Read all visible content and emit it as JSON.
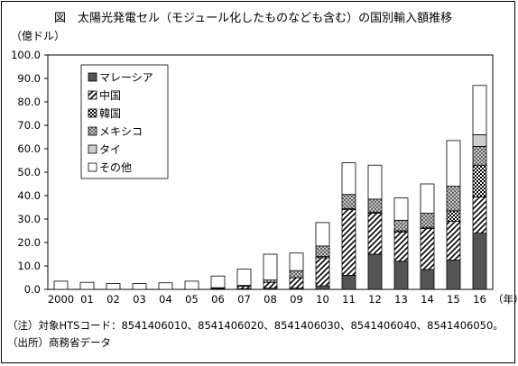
{
  "figure_title": "図　太陽光発電セル（モジュール化したものなども含む）の国別輸入額推移",
  "notes": {
    "note1": "（注）対象HTSコード：8541406010、8541406020、8541406030、8541406040、8541406050。",
    "note2": "（出所）商務省データ"
  },
  "chart_data": {
    "type": "bar",
    "stacked": true,
    "title": "図　太陽光発電セル（モジュール化したものなども含む）の国別輸入額推移",
    "ylabel": "（億ドル）",
    "xlabel": "（年）",
    "ylim": [
      0,
      100
    ],
    "yticks": [
      "0.0",
      "10.0",
      "20.0",
      "30.0",
      "40.0",
      "50.0",
      "60.0",
      "70.0",
      "80.0",
      "90.0",
      "100.0"
    ],
    "grid": false,
    "legend_position": "top-left",
    "categories": [
      "2000",
      "01",
      "02",
      "03",
      "04",
      "05",
      "06",
      "07",
      "08",
      "09",
      "10",
      "11",
      "12",
      "13",
      "14",
      "15",
      "16"
    ],
    "series": [
      {
        "name": "マレーシア",
        "fill": "dark",
        "values": [
          0,
          0,
          0,
          0,
          0,
          0,
          0.2,
          0.3,
          0.5,
          0.5,
          1.5,
          6.0,
          15.0,
          12.0,
          8.5,
          12.5,
          24.0
        ]
      },
      {
        "name": "中国",
        "fill": "diagonal",
        "values": [
          0,
          0,
          0,
          0,
          0,
          0,
          0.3,
          1.0,
          2.5,
          4.5,
          12.0,
          28.0,
          17.5,
          12.5,
          17.5,
          16.5,
          15.5
        ]
      },
      {
        "name": "韓国",
        "fill": "checker",
        "values": [
          0,
          0,
          0,
          0,
          0,
          0,
          0,
          0,
          0,
          0,
          0.5,
          0.5,
          0.5,
          0.5,
          0.5,
          4.5,
          13.5
        ]
      },
      {
        "name": "メキシコ",
        "fill": "crosshatch",
        "values": [
          0,
          0,
          0,
          0,
          0,
          0,
          0.2,
          0.4,
          1.0,
          3.0,
          4.5,
          6.0,
          5.5,
          4.5,
          6.0,
          10.5,
          8.0
        ]
      },
      {
        "name": "タイ",
        "fill": "lightgray",
        "values": [
          0,
          0,
          0,
          0,
          0,
          0,
          0,
          0,
          0,
          0,
          0,
          0,
          0,
          0,
          0,
          0,
          5.0
        ]
      },
      {
        "name": "その他",
        "fill": "white",
        "values": [
          3.5,
          3.0,
          2.5,
          2.5,
          2.8,
          3.5,
          5.0,
          7.0,
          11.0,
          7.5,
          10.0,
          13.5,
          14.5,
          9.5,
          12.5,
          19.5,
          21.0
        ]
      }
    ]
  }
}
